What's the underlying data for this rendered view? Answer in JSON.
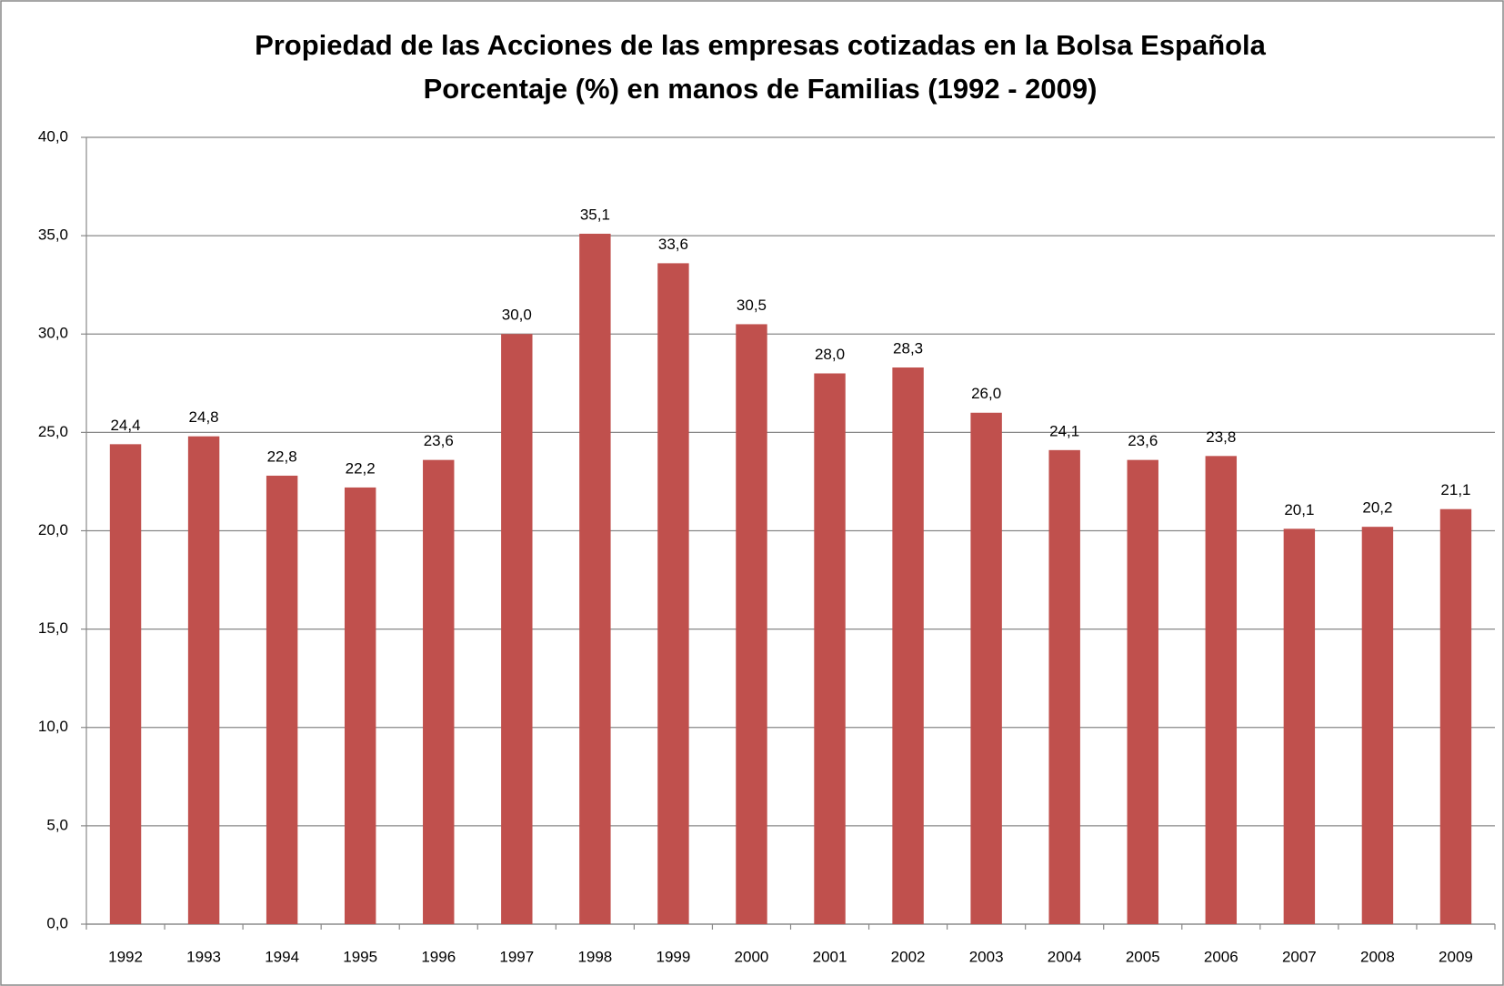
{
  "chart_data": {
    "type": "bar",
    "title": "Propiedad de las Acciones de  las empresas cotizadas en la Bolsa Española",
    "subtitle": "Porcentaje (%) en manos de Familias (1992 - 2009)",
    "categories": [
      "1992",
      "1993",
      "1994",
      "1995",
      "1996",
      "1997",
      "1998",
      "1999",
      "2000",
      "2001",
      "2002",
      "2003",
      "2004",
      "2005",
      "2006",
      "2007",
      "2008",
      "2009"
    ],
    "values": [
      24.4,
      24.8,
      22.8,
      22.2,
      23.6,
      30.0,
      35.1,
      33.6,
      30.5,
      28.0,
      28.3,
      26.0,
      24.1,
      23.6,
      23.8,
      20.1,
      20.2,
      21.1
    ],
    "value_labels": [
      "24,4",
      "24,8",
      "22,8",
      "22,2",
      "23,6",
      "30,0",
      "35,1",
      "33,6",
      "30,5",
      "28,0",
      "28,3",
      "26,0",
      "24,1",
      "23,6",
      "23,8",
      "20,1",
      "20,2",
      "21,1"
    ],
    "color": "#c0504d",
    "ylim": [
      0,
      40
    ],
    "yticks": [
      {
        "value": 0,
        "label": "0,0"
      },
      {
        "value": 5,
        "label": "5,0"
      },
      {
        "value": 10,
        "label": "10,0"
      },
      {
        "value": 15,
        "label": "15,0"
      },
      {
        "value": 20,
        "label": "20,0"
      },
      {
        "value": 25,
        "label": "25,0"
      },
      {
        "value": 30,
        "label": "30,0"
      },
      {
        "value": 35,
        "label": "35,0"
      },
      {
        "value": 40,
        "label": "40,0"
      }
    ],
    "grid": true
  }
}
